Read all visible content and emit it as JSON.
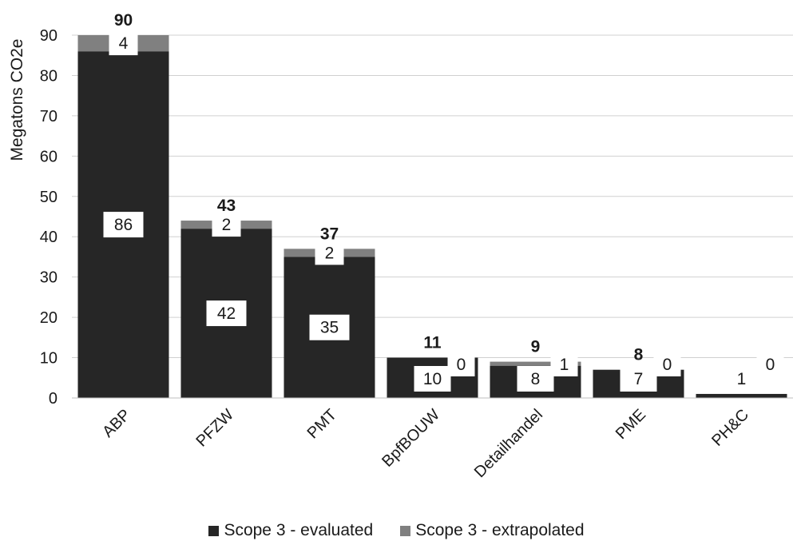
{
  "chart_data": {
    "type": "bar",
    "ylabel": "Megatons CO2e",
    "xlabel": "",
    "ylim": [
      0,
      90
    ],
    "y_ticks": [
      0,
      10,
      20,
      30,
      40,
      50,
      60,
      70,
      80,
      90
    ],
    "grid": true,
    "legend_position": "bottom",
    "categories": [
      "ABP",
      "PFZW",
      "PMT",
      "BpfBOUW",
      "Detailhandel",
      "PME",
      "PH&C"
    ],
    "series": [
      {
        "name": "Scope 3 - evaluated",
        "color": "#262626",
        "values": [
          86,
          42,
          35,
          10,
          8,
          7,
          1
        ],
        "labels": [
          "86",
          "42",
          "35",
          "10",
          "8",
          "7",
          "1"
        ]
      },
      {
        "name": "Scope 3 - extrapolated",
        "color": "#808080",
        "values": [
          4,
          2,
          2,
          0,
          1,
          0,
          0
        ],
        "labels": [
          "4",
          "2",
          "2",
          "0",
          "1",
          "0",
          "0"
        ]
      }
    ],
    "totals": [
      "90",
      "43",
      "37",
      "11",
      "9",
      "8",
      "1"
    ]
  }
}
